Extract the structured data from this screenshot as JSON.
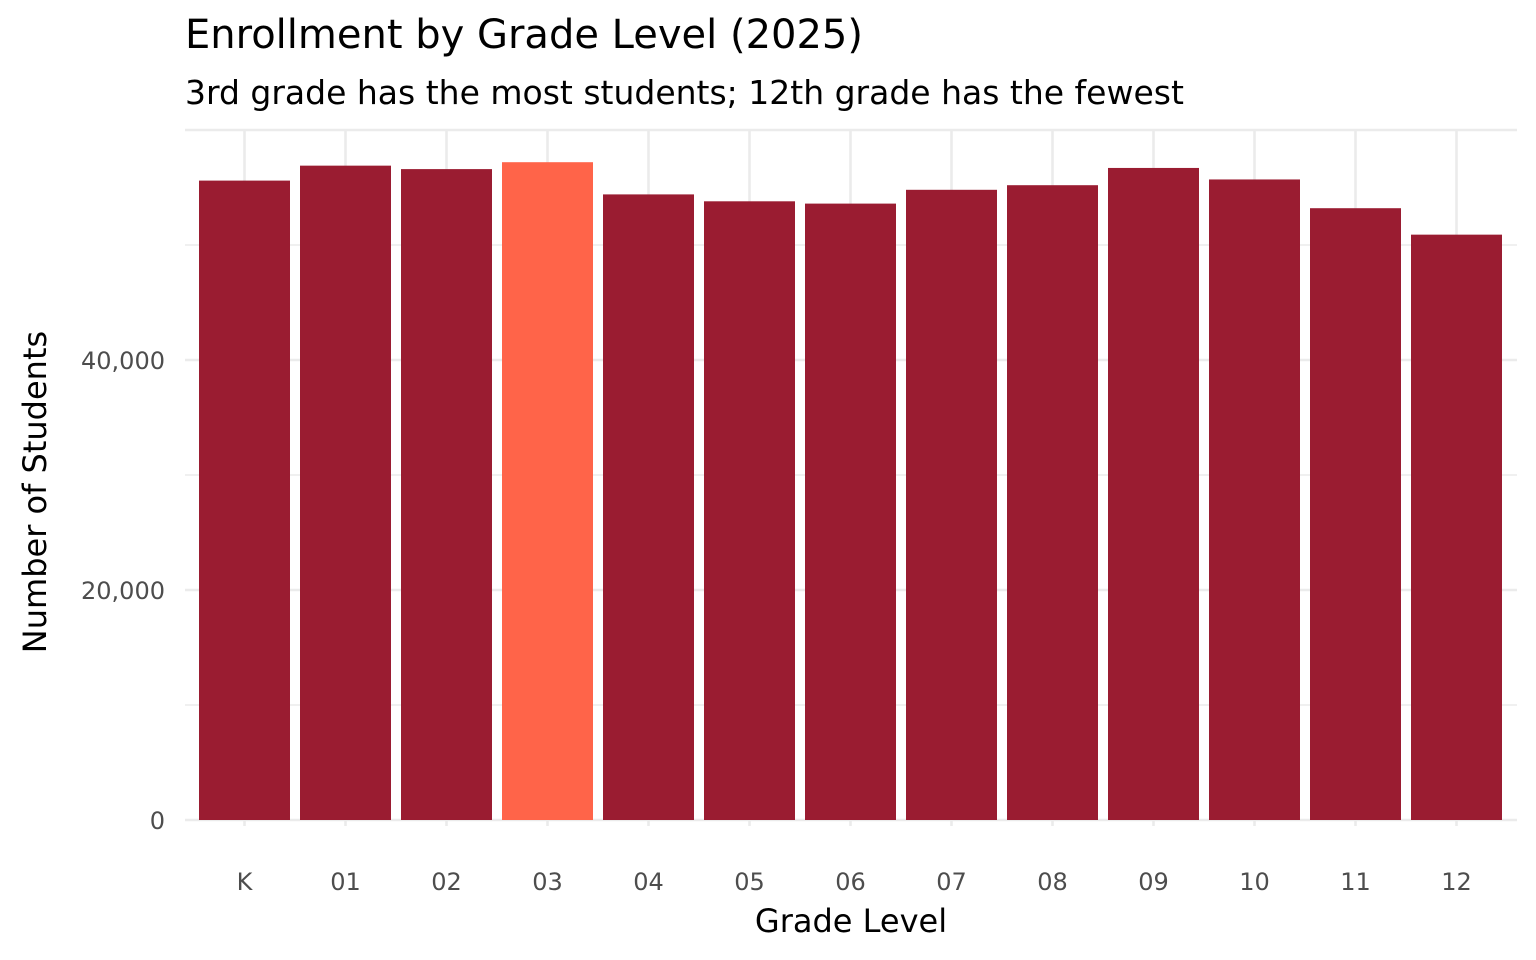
{
  "chart_data": {
    "type": "bar",
    "title": "Enrollment by Grade Level (2025)",
    "subtitle": "3rd grade has the most students; 12th grade has the fewest",
    "xlabel": "Grade Level",
    "ylabel": "Number of Students",
    "categories": [
      "K",
      "01",
      "02",
      "03",
      "04",
      "05",
      "06",
      "07",
      "08",
      "09",
      "10",
      "11",
      "12"
    ],
    "values": [
      55600,
      56900,
      56600,
      57200,
      54400,
      53800,
      53600,
      54800,
      55200,
      56700,
      55700,
      53200,
      50900
    ],
    "ylim": [
      0,
      60000
    ],
    "yticks": [
      0,
      20000,
      40000
    ],
    "ytick_labels": [
      "0",
      "20,000",
      "40,000"
    ],
    "highlight_category": "03",
    "colors": {
      "bar": "#9a1c31",
      "highlight": "#ff6449",
      "grid": "#ebebeb"
    },
    "grid": true,
    "legend": "none"
  }
}
